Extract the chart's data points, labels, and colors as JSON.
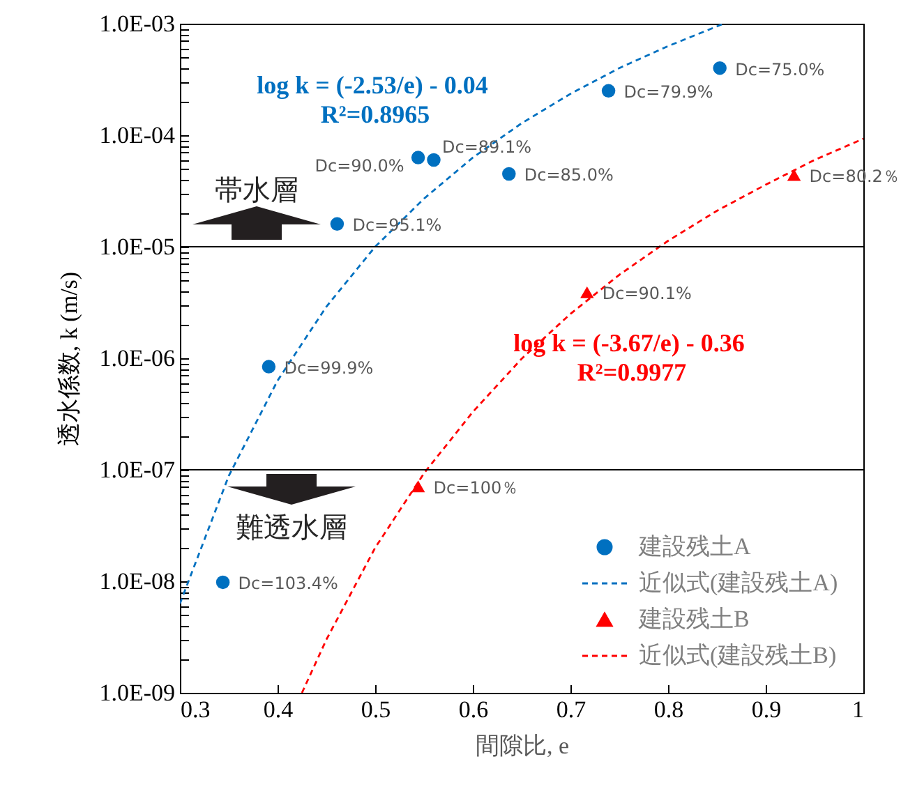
{
  "chart_data": {
    "type": "scatter",
    "xlabel": "間隙比, e",
    "ylabel": "透水係数, k (m/s)",
    "log": "y",
    "legend": "bottom right",
    "xlim": [
      0.3,
      1
    ],
    "xticks": [
      0.3,
      0.4,
      0.5,
      0.6,
      0.7,
      0.8,
      0.9,
      1
    ],
    "ylim": [
      1e-09,
      0.001
    ],
    "yticks": [
      {
        "value": 1e-09,
        "label": "1.0E-09"
      },
      {
        "value": 2e-09,
        "label": null
      },
      {
        "value": 3e-09,
        "label": null
      },
      {
        "value": 4e-09,
        "label": null
      },
      {
        "value": 5e-09,
        "label": null
      },
      {
        "value": 6e-09,
        "label": null
      },
      {
        "value": 7e-09,
        "label": null
      },
      {
        "value": 8e-09,
        "label": null
      },
      {
        "value": 9e-09,
        "label": null
      },
      {
        "value": 1e-08,
        "label": "1.0E-08"
      },
      {
        "value": 2e-08,
        "label": null
      },
      {
        "value": 3e-08,
        "label": null
      },
      {
        "value": 4e-08,
        "label": null
      },
      {
        "value": 5e-08,
        "label": null
      },
      {
        "value": 6e-08,
        "label": null
      },
      {
        "value": 7e-08,
        "label": null
      },
      {
        "value": 8e-08,
        "label": null
      },
      {
        "value": 9e-08,
        "label": null
      },
      {
        "value": 1e-07,
        "label": "1.0E-07"
      },
      {
        "value": 2e-07,
        "label": null
      },
      {
        "value": 3e-07,
        "label": null
      },
      {
        "value": 4e-07,
        "label": null
      },
      {
        "value": 5e-07,
        "label": null
      },
      {
        "value": 6e-07,
        "label": null
      },
      {
        "value": 7e-07,
        "label": null
      },
      {
        "value": 8e-07,
        "label": null
      },
      {
        "value": 9e-07,
        "label": null
      },
      {
        "value": 1e-06,
        "label": "1.0E-06"
      },
      {
        "value": 2e-06,
        "label": null
      },
      {
        "value": 3e-06,
        "label": null
      },
      {
        "value": 4e-06,
        "label": null
      },
      {
        "value": 5e-06,
        "label": null
      },
      {
        "value": 6e-06,
        "label": null
      },
      {
        "value": 7e-06,
        "label": null
      },
      {
        "value": 8e-06,
        "label": null
      },
      {
        "value": 9e-06,
        "label": null
      },
      {
        "value": 1e-05,
        "label": "1.0E-05"
      },
      {
        "value": 2e-05,
        "label": null
      },
      {
        "value": 3e-05,
        "label": null
      },
      {
        "value": 4e-05,
        "label": null
      },
      {
        "value": 5e-05,
        "label": null
      },
      {
        "value": 6e-05,
        "label": null
      },
      {
        "value": 7e-05,
        "label": null
      },
      {
        "value": 8e-05,
        "label": null
      },
      {
        "value": 9e-05,
        "label": null
      },
      {
        "value": 0.0001,
        "label": "1.0E-04"
      },
      {
        "value": 0.0002,
        "label": null
      },
      {
        "value": 0.0003,
        "label": null
      },
      {
        "value": 0.0004,
        "label": null
      },
      {
        "value": 0.0005,
        "label": null
      },
      {
        "value": 0.0006,
        "label": null
      },
      {
        "value": 0.0007,
        "label": null
      },
      {
        "value": 0.0008,
        "label": null
      },
      {
        "value": 0.0009,
        "label": null
      },
      {
        "value": 0.001,
        "label": "1.0E-03"
      }
    ],
    "series": [
      {
        "name": "建設残土A",
        "type": "scatter",
        "color": "#0070c0",
        "marker": "circle",
        "x": [
          0.344,
          0.391,
          0.461,
          0.544,
          0.56,
          0.637,
          0.739,
          0.853
        ],
        "values": [
          9.8e-09,
          8.4e-07,
          1.6e-05,
          6.3e-05,
          6e-05,
          4.5e-05,
          0.00025,
          0.0004
        ]
      },
      {
        "name": "近似式(建設残土A)",
        "type": "line",
        "color": "#0070c0",
        "line_style": "dashed",
        "x": [
          0.3,
          0.35,
          0.4,
          0.45,
          0.5,
          0.55,
          0.6,
          0.65,
          0.7,
          0.75,
          0.8,
          0.857
        ],
        "values": [
          6.3e-09,
          8.8e-08,
          6.3e-07,
          2.9e-06,
          1e-05,
          2.7e-05,
          6.3e-05,
          0.000128,
          0.000235,
          0.0004,
          0.00063,
          0.001
        ]
      },
      {
        "name": "建設残土B",
        "type": "scatter",
        "color": "#ff0000",
        "marker": "triangle",
        "x": [
          0.544,
          0.717,
          0.929
        ],
        "values": [
          7.1e-08,
          3.9e-06,
          4.4e-05
        ]
      },
      {
        "name": "近似式(建設残土B)",
        "type": "line",
        "color": "#ff0000",
        "line_style": "dashed",
        "x": [
          0.425,
          0.45,
          0.5,
          0.55,
          0.6,
          0.65,
          0.7,
          0.75,
          0.8,
          0.85,
          0.9,
          0.95,
          1.0
        ],
        "values": [
          1e-09,
          3e-09,
          2e-08,
          9.3e-08,
          3.3e-07,
          9.9e-07,
          2.5e-06,
          5.6e-06,
          1.13e-05,
          2.1e-05,
          3.6e-05,
          6e-05,
          9.3e-05
        ]
      }
    ],
    "ref_lines": [
      {
        "axis": "y",
        "value": 1e-05,
        "label": "帯水層",
        "color": "#000000"
      },
      {
        "axis": "y",
        "value": 1e-07,
        "label": "難透水層",
        "color": "#000000"
      }
    ],
    "annotations": [
      "log k = (-2.53/e) - 0.04",
      "R²=0.8965",
      "log k = (-3.67/e) - 0.36",
      "R²=0.9977",
      {
        "text": "Dc=103.4%",
        "x": 0.344,
        "y": 9.8e-09
      },
      {
        "text": "Dc=99.9%",
        "x": 0.391,
        "y": 8.4e-07
      },
      {
        "text": "Dc=95.1%",
        "x": 0.461,
        "y": 1.6e-05
      },
      {
        "text": "Dc=90.0%",
        "x": 0.544,
        "y": 6.3e-05
      },
      {
        "text": "Dc=89.1%",
        "x": 0.56,
        "y": 6e-05
      },
      {
        "text": "Dc=85.0%",
        "x": 0.637,
        "y": 4.5e-05
      },
      {
        "text": "Dc=79.9%",
        "x": 0.739,
        "y": 0.00025
      },
      {
        "text": "Dc=75.0%",
        "x": 0.853,
        "y": 0.0004
      },
      {
        "text": "Dc=100％",
        "x": 0.544,
        "y": 7.1e-08
      },
      {
        "text": "Dc=90.1%",
        "x": 0.717,
        "y": 3.9e-06
      },
      {
        "text": "Dc=80.2％",
        "x": 0.929,
        "y": 4.4e-05
      }
    ]
  }
}
